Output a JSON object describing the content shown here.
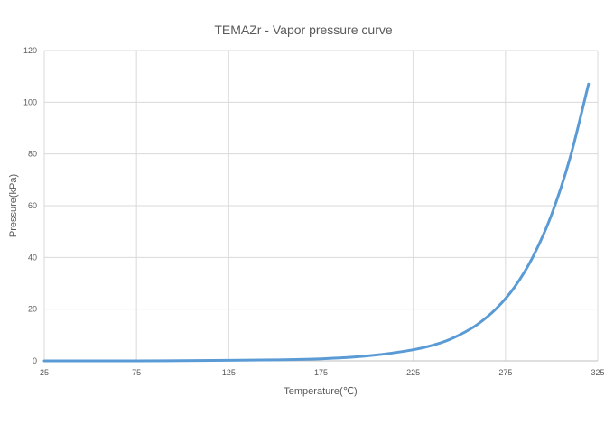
{
  "chart_data": {
    "type": "line",
    "title": "TEMAZr - Vapor pressure curve",
    "xlabel": "Temperature(℃)",
    "ylabel": "Pressure(kPa)",
    "xlim": [
      25,
      325
    ],
    "ylim": [
      0,
      120
    ],
    "x_ticks": [
      25,
      75,
      125,
      175,
      225,
      275,
      325
    ],
    "y_ticks": [
      0,
      20,
      40,
      60,
      80,
      100,
      120
    ],
    "grid": true,
    "legend": "none",
    "series": [
      {
        "color": "#5b9bd5",
        "x": [
          25,
          50,
          75,
          100,
          125,
          150,
          175,
          200,
          225,
          240,
          250,
          260,
          270,
          280,
          290,
          300,
          310,
          320
        ],
        "y": [
          0.0,
          0.0,
          0.0,
          0.1,
          0.2,
          0.4,
          0.8,
          1.9,
          4.3,
          7.0,
          10.0,
          14.2,
          20.2,
          28.6,
          40.4,
          56.6,
          78.5,
          107.0
        ]
      }
    ]
  }
}
